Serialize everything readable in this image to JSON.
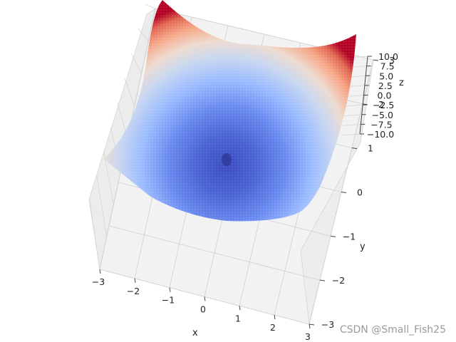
{
  "chart_data": {
    "type": "surface3d",
    "surface": "paraboloid bowl, z = x^2 + y^2 - 8",
    "colormap": "coolwarm",
    "x": {
      "label": "x",
      "ticks": [
        -3,
        -2,
        -1,
        0,
        1,
        2,
        3
      ],
      "range": [
        -3,
        3
      ]
    },
    "y": {
      "label": "y",
      "ticks": [
        -3,
        -2,
        -1,
        0,
        1,
        2,
        3
      ],
      "range": [
        -3,
        3
      ]
    },
    "z": {
      "label": "z",
      "ticks": [
        -10.0,
        -7.5,
        -5.0,
        -2.5,
        0.0,
        2.5,
        5.0,
        7.5,
        10.0
      ],
      "range": [
        -10,
        10
      ]
    },
    "grid": true,
    "view": "elevated, looking down onto x-y plane"
  },
  "axes": {
    "x_label": "x",
    "y_label": "y",
    "z_label": "z",
    "x_ticks": [
      "−3",
      "−2",
      "−1",
      "0",
      "1",
      "2",
      "3"
    ],
    "y_ticks": [
      "−3",
      "−2",
      "−1",
      "0",
      "1",
      "2",
      "3"
    ],
    "z_ticks": [
      "10.0",
      "7.5",
      "5.0",
      "2.5",
      "0.0",
      "−2.5",
      "−5.0",
      "−7.5",
      "−10.0"
    ]
  },
  "watermark": "CSDN @Small_Fish25"
}
